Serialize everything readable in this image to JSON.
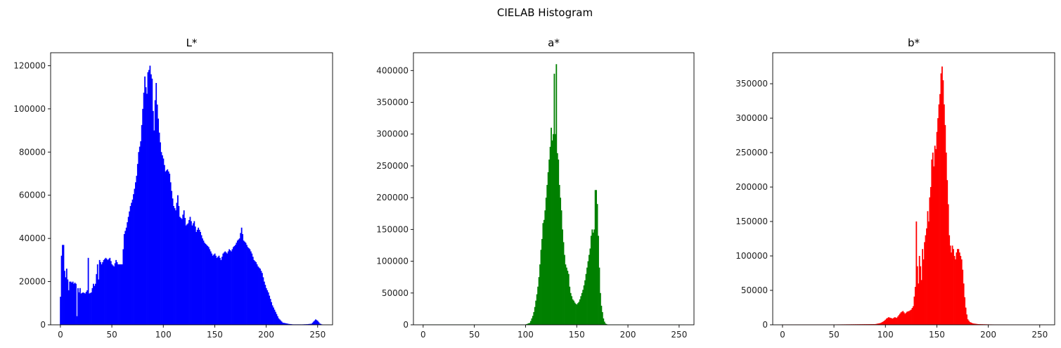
{
  "figure": {
    "title": "CIELAB Histogram"
  },
  "chart_data": [
    {
      "type": "bar",
      "title": "L*",
      "color": "#0000ff",
      "xlim": [
        -9.5,
        264.5
      ],
      "ylim": [
        0,
        126000
      ],
      "xticks": [
        0,
        50,
        100,
        150,
        200,
        250
      ],
      "yticks": [
        0,
        20000,
        40000,
        60000,
        80000,
        100000,
        120000
      ],
      "ytick_labels": [
        "0",
        "20000",
        "40000",
        "60000",
        "80000",
        "100000",
        "120000"
      ],
      "xtick_labels": [
        "0",
        "50",
        "100",
        "150",
        "200",
        "250"
      ],
      "points": [
        [
          0,
          13000
        ],
        [
          1,
          32000
        ],
        [
          2,
          37000
        ],
        [
          3,
          37000
        ],
        [
          4,
          25000
        ],
        [
          5,
          22000
        ],
        [
          6,
          26000
        ],
        [
          7,
          21000
        ],
        [
          8,
          16000
        ],
        [
          9,
          20000
        ],
        [
          10,
          20000
        ],
        [
          11,
          19500
        ],
        [
          12,
          20000
        ],
        [
          13,
          19000
        ],
        [
          14,
          19500
        ],
        [
          15,
          19000
        ],
        [
          16,
          4000
        ],
        [
          17,
          17000
        ],
        [
          18,
          15000
        ],
        [
          19,
          17000
        ],
        [
          20,
          14500
        ],
        [
          22,
          15000
        ],
        [
          24,
          14500
        ],
        [
          26,
          16000
        ],
        [
          27,
          31000
        ],
        [
          28,
          14500
        ],
        [
          30,
          15000
        ],
        [
          32,
          19000
        ],
        [
          33,
          18000
        ],
        [
          34,
          19000
        ],
        [
          36,
          28000
        ],
        [
          37,
          21000
        ],
        [
          38,
          30000
        ],
        [
          40,
          28000
        ],
        [
          42,
          30000
        ],
        [
          44,
          31000
        ],
        [
          46,
          30000
        ],
        [
          48,
          31000
        ],
        [
          50,
          28000
        ],
        [
          52,
          27000
        ],
        [
          54,
          30000
        ],
        [
          56,
          28000
        ],
        [
          58,
          28000
        ],
        [
          60,
          28000
        ],
        [
          62,
          42000
        ],
        [
          64,
          45000
        ],
        [
          66,
          50000
        ],
        [
          68,
          55000
        ],
        [
          70,
          58000
        ],
        [
          72,
          63000
        ],
        [
          74,
          69000
        ],
        [
          76,
          80000
        ],
        [
          78,
          85000
        ],
        [
          80,
          100000
        ],
        [
          82,
          115000
        ],
        [
          83,
          110000
        ],
        [
          84,
          107000
        ],
        [
          85,
          117000
        ],
        [
          86,
          118000
        ],
        [
          87,
          120000
        ],
        [
          88,
          116000
        ],
        [
          89,
          114000
        ],
        [
          90,
          99000
        ],
        [
          91,
          90000
        ],
        [
          92,
          104000
        ],
        [
          93,
          112000
        ],
        [
          94,
          102000
        ],
        [
          96,
          89000
        ],
        [
          98,
          80000
        ],
        [
          100,
          77000
        ],
        [
          102,
          71000
        ],
        [
          104,
          72000
        ],
        [
          106,
          70000
        ],
        [
          108,
          62000
        ],
        [
          110,
          55000
        ],
        [
          112,
          53000
        ],
        [
          114,
          60000
        ],
        [
          116,
          50000
        ],
        [
          118,
          49000
        ],
        [
          120,
          53000
        ],
        [
          122,
          46000
        ],
        [
          124,
          47000
        ],
        [
          126,
          50000
        ],
        [
          128,
          46000
        ],
        [
          130,
          48000
        ],
        [
          132,
          43000
        ],
        [
          134,
          45000
        ],
        [
          136,
          43000
        ],
        [
          138,
          40000
        ],
        [
          140,
          38000
        ],
        [
          142,
          37000
        ],
        [
          144,
          36000
        ],
        [
          146,
          34000
        ],
        [
          148,
          32000
        ],
        [
          150,
          33000
        ],
        [
          152,
          31000
        ],
        [
          154,
          32000
        ],
        [
          156,
          30000
        ],
        [
          158,
          33000
        ],
        [
          160,
          34000
        ],
        [
          162,
          33000
        ],
        [
          164,
          35000
        ],
        [
          166,
          34000
        ],
        [
          168,
          36000
        ],
        [
          170,
          37000
        ],
        [
          172,
          39000
        ],
        [
          174,
          40000
        ],
        [
          176,
          45000
        ],
        [
          178,
          39000
        ],
        [
          180,
          38000
        ],
        [
          182,
          36000
        ],
        [
          184,
          35000
        ],
        [
          186,
          33000
        ],
        [
          188,
          30000
        ],
        [
          190,
          29000
        ],
        [
          192,
          27000
        ],
        [
          194,
          26000
        ],
        [
          196,
          24000
        ],
        [
          198,
          20000
        ],
        [
          200,
          17000
        ],
        [
          202,
          15000
        ],
        [
          204,
          12000
        ],
        [
          206,
          9000
        ],
        [
          208,
          7000
        ],
        [
          210,
          5000
        ],
        [
          212,
          3000
        ],
        [
          214,
          2000
        ],
        [
          216,
          1000
        ],
        [
          218,
          800
        ],
        [
          220,
          600
        ],
        [
          222,
          400
        ],
        [
          224,
          300
        ],
        [
          226,
          200
        ],
        [
          230,
          200
        ],
        [
          235,
          200
        ],
        [
          240,
          300
        ],
        [
          244,
          500
        ],
        [
          246,
          1500
        ],
        [
          248,
          2500
        ],
        [
          250,
          1800
        ],
        [
          252,
          600
        ],
        [
          254,
          200
        ],
        [
          255,
          100
        ]
      ]
    },
    {
      "type": "bar",
      "title": "a*",
      "color": "#008000",
      "xlim": [
        -9.5,
        264.5
      ],
      "ylim": [
        0,
        428000
      ],
      "xticks": [
        0,
        50,
        100,
        150,
        200,
        250
      ],
      "yticks": [
        0,
        50000,
        100000,
        150000,
        200000,
        250000,
        300000,
        350000,
        400000
      ],
      "ytick_labels": [
        "0",
        "50000",
        "100000",
        "150000",
        "200000",
        "250000",
        "300000",
        "350000",
        "400000"
      ],
      "xtick_labels": [
        "0",
        "50",
        "100",
        "150",
        "200",
        "250"
      ],
      "points": [
        [
          0,
          500
        ],
        [
          50,
          500
        ],
        [
          100,
          500
        ],
        [
          104,
          3000
        ],
        [
          105,
          6000
        ],
        [
          106,
          10000
        ],
        [
          107,
          14000
        ],
        [
          108,
          20000
        ],
        [
          109,
          28000
        ],
        [
          110,
          38000
        ],
        [
          111,
          48000
        ],
        [
          112,
          60000
        ],
        [
          113,
          75000
        ],
        [
          114,
          95000
        ],
        [
          115,
          118000
        ],
        [
          116,
          135000
        ],
        [
          117,
          160000
        ],
        [
          118,
          165000
        ],
        [
          119,
          180000
        ],
        [
          120,
          200000
        ],
        [
          121,
          220000
        ],
        [
          122,
          240000
        ],
        [
          123,
          260000
        ],
        [
          124,
          280000
        ],
        [
          125,
          310000
        ],
        [
          126,
          290000
        ],
        [
          127,
          300000
        ],
        [
          128,
          395000
        ],
        [
          129,
          300000
        ],
        [
          130,
          410000
        ],
        [
          131,
          270000
        ],
        [
          132,
          260000
        ],
        [
          133,
          220000
        ],
        [
          134,
          200000
        ],
        [
          135,
          180000
        ],
        [
          136,
          150000
        ],
        [
          137,
          130000
        ],
        [
          138,
          110000
        ],
        [
          139,
          95000
        ],
        [
          140,
          90000
        ],
        [
          141,
          85000
        ],
        [
          142,
          80000
        ],
        [
          143,
          60000
        ],
        [
          144,
          50000
        ],
        [
          145,
          45000
        ],
        [
          146,
          40000
        ],
        [
          147,
          38000
        ],
        [
          148,
          35000
        ],
        [
          149,
          33000
        ],
        [
          150,
          32000
        ],
        [
          151,
          34000
        ],
        [
          152,
          36000
        ],
        [
          153,
          40000
        ],
        [
          154,
          45000
        ],
        [
          155,
          50000
        ],
        [
          156,
          55000
        ],
        [
          157,
          62000
        ],
        [
          158,
          70000
        ],
        [
          159,
          80000
        ],
        [
          160,
          90000
        ],
        [
          161,
          100000
        ],
        [
          162,
          110000
        ],
        [
          163,
          120000
        ],
        [
          164,
          140000
        ],
        [
          165,
          150000
        ],
        [
          166,
          145000
        ],
        [
          167,
          150000
        ],
        [
          168,
          212000
        ],
        [
          169,
          212000
        ],
        [
          170,
          190000
        ],
        [
          171,
          140000
        ],
        [
          172,
          90000
        ],
        [
          173,
          50000
        ],
        [
          174,
          30000
        ],
        [
          175,
          20000
        ],
        [
          176,
          10000
        ],
        [
          177,
          5000
        ],
        [
          178,
          2000
        ],
        [
          180,
          500
        ],
        [
          200,
          300
        ],
        [
          255,
          200
        ]
      ]
    },
    {
      "type": "bar",
      "title": "b*",
      "color": "#ff0000",
      "xlim": [
        -9.5,
        264.5
      ],
      "ylim": [
        0,
        395000
      ],
      "xticks": [
        0,
        50,
        100,
        150,
        200,
        250
      ],
      "yticks": [
        0,
        50000,
        100000,
        150000,
        200000,
        250000,
        300000,
        350000
      ],
      "ytick_labels": [
        "0",
        "50000",
        "100000",
        "150000",
        "200000",
        "250000",
        "300000",
        "350000"
      ],
      "xtick_labels": [
        "0",
        "50",
        "100",
        "150",
        "200",
        "250"
      ],
      "points": [
        [
          0,
          300
        ],
        [
          50,
          500
        ],
        [
          90,
          1000
        ],
        [
          95,
          2500
        ],
        [
          97,
          4000
        ],
        [
          99,
          6000
        ],
        [
          101,
          9000
        ],
        [
          103,
          11000
        ],
        [
          105,
          10000
        ],
        [
          107,
          9000
        ],
        [
          109,
          11000
        ],
        [
          111,
          10000
        ],
        [
          113,
          14000
        ],
        [
          115,
          18000
        ],
        [
          117,
          20000
        ],
        [
          119,
          16000
        ],
        [
          121,
          19000
        ],
        [
          123,
          20000
        ],
        [
          125,
          22000
        ],
        [
          127,
          27000
        ],
        [
          129,
          55000
        ],
        [
          130,
          150000
        ],
        [
          131,
          85000
        ],
        [
          132,
          60000
        ],
        [
          133,
          100000
        ],
        [
          134,
          85000
        ],
        [
          135,
          65000
        ],
        [
          136,
          110000
        ],
        [
          137,
          95000
        ],
        [
          138,
          120000
        ],
        [
          139,
          130000
        ],
        [
          140,
          140000
        ],
        [
          141,
          165000
        ],
        [
          142,
          150000
        ],
        [
          143,
          185000
        ],
        [
          144,
          200000
        ],
        [
          145,
          240000
        ],
        [
          146,
          250000
        ],
        [
          147,
          230000
        ],
        [
          148,
          260000
        ],
        [
          149,
          255000
        ],
        [
          150,
          280000
        ],
        [
          151,
          300000
        ],
        [
          152,
          320000
        ],
        [
          153,
          335000
        ],
        [
          154,
          365000
        ],
        [
          155,
          375000
        ],
        [
          156,
          355000
        ],
        [
          157,
          320000
        ],
        [
          158,
          290000
        ],
        [
          159,
          250000
        ],
        [
          160,
          210000
        ],
        [
          161,
          175000
        ],
        [
          162,
          130000
        ],
        [
          163,
          115000
        ],
        [
          164,
          105000
        ],
        [
          165,
          115000
        ],
        [
          166,
          110000
        ],
        [
          167,
          100000
        ],
        [
          168,
          95000
        ],
        [
          169,
          105000
        ],
        [
          170,
          110000
        ],
        [
          171,
          110000
        ],
        [
          172,
          105000
        ],
        [
          173,
          100000
        ],
        [
          174,
          95000
        ],
        [
          175,
          80000
        ],
        [
          176,
          60000
        ],
        [
          177,
          40000
        ],
        [
          178,
          25000
        ],
        [
          179,
          15000
        ],
        [
          180,
          8000
        ],
        [
          182,
          4000
        ],
        [
          185,
          2000
        ],
        [
          190,
          1000
        ],
        [
          200,
          600
        ],
        [
          220,
          300
        ],
        [
          255,
          200
        ]
      ]
    }
  ]
}
